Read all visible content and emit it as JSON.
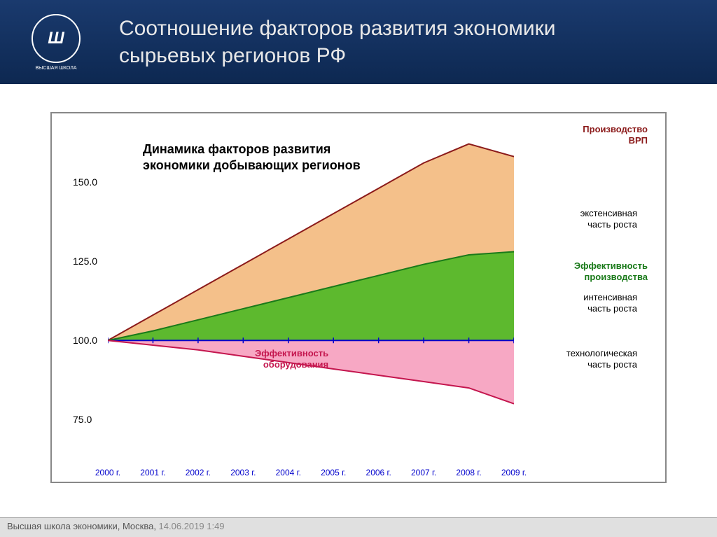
{
  "header": {
    "logo_text": "Ш",
    "logo_subtitle": "ВЫСШАЯ ШКОЛА",
    "title": "Соотношение факторов развития экономики сырьевых регионов РФ"
  },
  "chart": {
    "type": "area",
    "title": "Динамика факторов развития экономики добывающих регионов",
    "ylim": [
      70,
      165
    ],
    "xlim": [
      2000,
      2009
    ],
    "yticks": [
      75.0,
      100.0,
      125.0,
      150.0
    ],
    "ytick_labels": [
      "75.0",
      "100.0",
      "125.0",
      "150.0"
    ],
    "xticks": [
      2000,
      2001,
      2002,
      2003,
      2004,
      2005,
      2006,
      2007,
      2008,
      2009
    ],
    "xtick_labels": [
      "2000 г.",
      "2001 г.",
      "2002 г.",
      "2003 г.",
      "2004 г.",
      "2005 г.",
      "2006 г.",
      "2007 г.",
      "2008 г.",
      "2009 г."
    ],
    "baseline": 100.0,
    "baseline_color": "#0000cc",
    "series": {
      "top": {
        "values": [
          100,
          108,
          116,
          124,
          132,
          140,
          148,
          156,
          162,
          158
        ],
        "fill": "#f4c08a",
        "line": "#8b1a1a",
        "line_width": 2
      },
      "middle": {
        "values": [
          100,
          103,
          106.5,
          110,
          113.5,
          117,
          120.5,
          124,
          127,
          128
        ],
        "fill": "#5db92e",
        "line": "#1a7a1a",
        "line_width": 2
      },
      "bottom": {
        "values": [
          100,
          98.5,
          97,
          95,
          93,
          91,
          89,
          87,
          85,
          80
        ],
        "fill": "#f7a8c4",
        "line": "#c4164e",
        "line_width": 2
      }
    },
    "labels": {
      "vrp": {
        "text": "Производство ВРП",
        "color": "#8b1a1a",
        "bold": true
      },
      "ext": {
        "text": "экстенсивная часть роста",
        "color": "#000000"
      },
      "eff_prod": {
        "text": "Эффективность производства",
        "color": "#1a7a1a",
        "bold": true
      },
      "int": {
        "text": "интенсивная часть роста",
        "color": "#000000"
      },
      "eff_ob": {
        "text": "Эффективность оборудования",
        "color": "#c4164e",
        "bold": true
      },
      "tech": {
        "text": "технологическая часть роста",
        "color": "#000000"
      }
    },
    "background_color": "#ffffff",
    "tick_color": "#000000",
    "x_tick_label_color": "#0000cc"
  },
  "footer": {
    "text": "Высшая школа экономики, Москва, ",
    "date": "14.06.2019 1:49"
  }
}
